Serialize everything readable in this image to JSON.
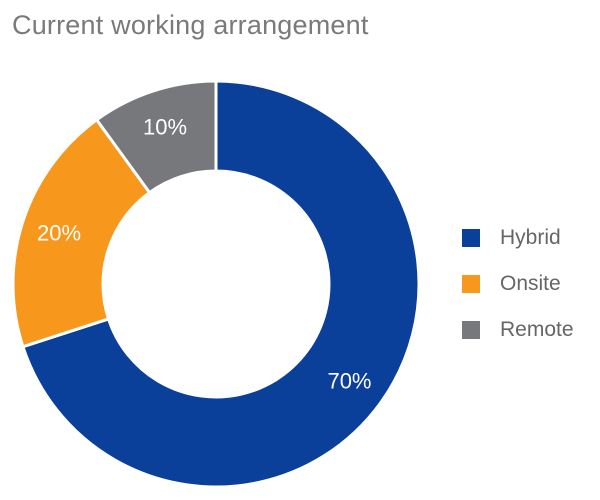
{
  "chart_data": {
    "type": "pie",
    "title": "Current working arrangement",
    "categories": [
      "Hybrid",
      "Onsite",
      "Remote"
    ],
    "values": [
      70,
      20,
      10
    ],
    "value_labels": [
      "70%",
      "20%",
      "10%"
    ],
    "colors": [
      "#0A3F9A",
      "#F7981D",
      "#76787B"
    ],
    "donut": true,
    "legend_position": "right"
  },
  "legend": {
    "items": [
      {
        "label": "Hybrid",
        "color": "#0A3F9A"
      },
      {
        "label": "Onsite",
        "color": "#F7981D"
      },
      {
        "label": "Remote",
        "color": "#76787B"
      }
    ]
  }
}
